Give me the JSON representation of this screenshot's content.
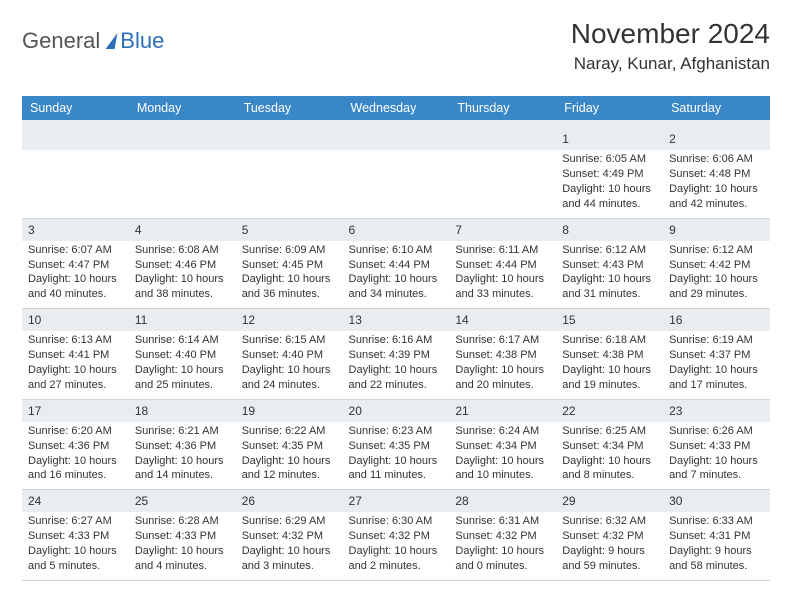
{
  "logo": {
    "textA": "General",
    "textB": "Blue"
  },
  "title": "November 2024",
  "location": "Naray, Kunar, Afghanistan",
  "colors": {
    "header_bg": "#3a87c8",
    "header_text": "#ffffff",
    "daynum_bg": "#e9edf0",
    "border": "#cfd4d9",
    "text": "#333333",
    "logo_blue": "#2d6fb6"
  },
  "daysOfWeek": [
    "Sunday",
    "Monday",
    "Tuesday",
    "Wednesday",
    "Thursday",
    "Friday",
    "Saturday"
  ],
  "weeks": [
    [
      {
        "n": "",
        "sr": "",
        "ss": "",
        "dl": ""
      },
      {
        "n": "",
        "sr": "",
        "ss": "",
        "dl": ""
      },
      {
        "n": "",
        "sr": "",
        "ss": "",
        "dl": ""
      },
      {
        "n": "",
        "sr": "",
        "ss": "",
        "dl": ""
      },
      {
        "n": "",
        "sr": "",
        "ss": "",
        "dl": ""
      },
      {
        "n": "1",
        "sr": "Sunrise: 6:05 AM",
        "ss": "Sunset: 4:49 PM",
        "dl": "Daylight: 10 hours and 44 minutes."
      },
      {
        "n": "2",
        "sr": "Sunrise: 6:06 AM",
        "ss": "Sunset: 4:48 PM",
        "dl": "Daylight: 10 hours and 42 minutes."
      }
    ],
    [
      {
        "n": "3",
        "sr": "Sunrise: 6:07 AM",
        "ss": "Sunset: 4:47 PM",
        "dl": "Daylight: 10 hours and 40 minutes."
      },
      {
        "n": "4",
        "sr": "Sunrise: 6:08 AM",
        "ss": "Sunset: 4:46 PM",
        "dl": "Daylight: 10 hours and 38 minutes."
      },
      {
        "n": "5",
        "sr": "Sunrise: 6:09 AM",
        "ss": "Sunset: 4:45 PM",
        "dl": "Daylight: 10 hours and 36 minutes."
      },
      {
        "n": "6",
        "sr": "Sunrise: 6:10 AM",
        "ss": "Sunset: 4:44 PM",
        "dl": "Daylight: 10 hours and 34 minutes."
      },
      {
        "n": "7",
        "sr": "Sunrise: 6:11 AM",
        "ss": "Sunset: 4:44 PM",
        "dl": "Daylight: 10 hours and 33 minutes."
      },
      {
        "n": "8",
        "sr": "Sunrise: 6:12 AM",
        "ss": "Sunset: 4:43 PM",
        "dl": "Daylight: 10 hours and 31 minutes."
      },
      {
        "n": "9",
        "sr": "Sunrise: 6:12 AM",
        "ss": "Sunset: 4:42 PM",
        "dl": "Daylight: 10 hours and 29 minutes."
      }
    ],
    [
      {
        "n": "10",
        "sr": "Sunrise: 6:13 AM",
        "ss": "Sunset: 4:41 PM",
        "dl": "Daylight: 10 hours and 27 minutes."
      },
      {
        "n": "11",
        "sr": "Sunrise: 6:14 AM",
        "ss": "Sunset: 4:40 PM",
        "dl": "Daylight: 10 hours and 25 minutes."
      },
      {
        "n": "12",
        "sr": "Sunrise: 6:15 AM",
        "ss": "Sunset: 4:40 PM",
        "dl": "Daylight: 10 hours and 24 minutes."
      },
      {
        "n": "13",
        "sr": "Sunrise: 6:16 AM",
        "ss": "Sunset: 4:39 PM",
        "dl": "Daylight: 10 hours and 22 minutes."
      },
      {
        "n": "14",
        "sr": "Sunrise: 6:17 AM",
        "ss": "Sunset: 4:38 PM",
        "dl": "Daylight: 10 hours and 20 minutes."
      },
      {
        "n": "15",
        "sr": "Sunrise: 6:18 AM",
        "ss": "Sunset: 4:38 PM",
        "dl": "Daylight: 10 hours and 19 minutes."
      },
      {
        "n": "16",
        "sr": "Sunrise: 6:19 AM",
        "ss": "Sunset: 4:37 PM",
        "dl": "Daylight: 10 hours and 17 minutes."
      }
    ],
    [
      {
        "n": "17",
        "sr": "Sunrise: 6:20 AM",
        "ss": "Sunset: 4:36 PM",
        "dl": "Daylight: 10 hours and 16 minutes."
      },
      {
        "n": "18",
        "sr": "Sunrise: 6:21 AM",
        "ss": "Sunset: 4:36 PM",
        "dl": "Daylight: 10 hours and 14 minutes."
      },
      {
        "n": "19",
        "sr": "Sunrise: 6:22 AM",
        "ss": "Sunset: 4:35 PM",
        "dl": "Daylight: 10 hours and 12 minutes."
      },
      {
        "n": "20",
        "sr": "Sunrise: 6:23 AM",
        "ss": "Sunset: 4:35 PM",
        "dl": "Daylight: 10 hours and 11 minutes."
      },
      {
        "n": "21",
        "sr": "Sunrise: 6:24 AM",
        "ss": "Sunset: 4:34 PM",
        "dl": "Daylight: 10 hours and 10 minutes."
      },
      {
        "n": "22",
        "sr": "Sunrise: 6:25 AM",
        "ss": "Sunset: 4:34 PM",
        "dl": "Daylight: 10 hours and 8 minutes."
      },
      {
        "n": "23",
        "sr": "Sunrise: 6:26 AM",
        "ss": "Sunset: 4:33 PM",
        "dl": "Daylight: 10 hours and 7 minutes."
      }
    ],
    [
      {
        "n": "24",
        "sr": "Sunrise: 6:27 AM",
        "ss": "Sunset: 4:33 PM",
        "dl": "Daylight: 10 hours and 5 minutes."
      },
      {
        "n": "25",
        "sr": "Sunrise: 6:28 AM",
        "ss": "Sunset: 4:33 PM",
        "dl": "Daylight: 10 hours and 4 minutes."
      },
      {
        "n": "26",
        "sr": "Sunrise: 6:29 AM",
        "ss": "Sunset: 4:32 PM",
        "dl": "Daylight: 10 hours and 3 minutes."
      },
      {
        "n": "27",
        "sr": "Sunrise: 6:30 AM",
        "ss": "Sunset: 4:32 PM",
        "dl": "Daylight: 10 hours and 2 minutes."
      },
      {
        "n": "28",
        "sr": "Sunrise: 6:31 AM",
        "ss": "Sunset: 4:32 PM",
        "dl": "Daylight: 10 hours and 0 minutes."
      },
      {
        "n": "29",
        "sr": "Sunrise: 6:32 AM",
        "ss": "Sunset: 4:32 PM",
        "dl": "Daylight: 9 hours and 59 minutes."
      },
      {
        "n": "30",
        "sr": "Sunrise: 6:33 AM",
        "ss": "Sunset: 4:31 PM",
        "dl": "Daylight: 9 hours and 58 minutes."
      }
    ]
  ]
}
